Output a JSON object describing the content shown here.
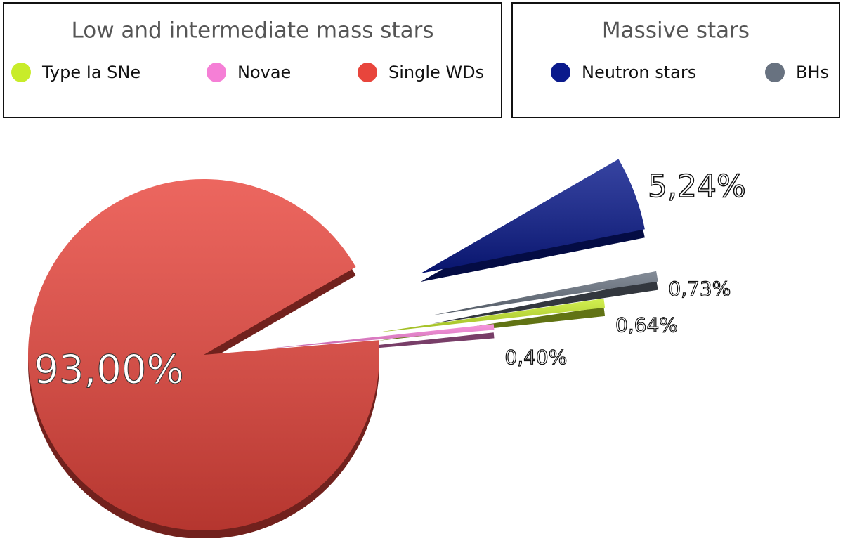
{
  "chart_data": {
    "type": "pie",
    "groups": [
      {
        "name": "Low and intermediate mass stars",
        "categories": [
          "Type Ia SNe",
          "Novae",
          "Single WDs"
        ],
        "colors": [
          "#c8ec2a",
          "#f57fd6",
          "#e8453c"
        ],
        "values": [
          0.64,
          0.4,
          93.0
        ],
        "value_labels": [
          "0,64%",
          "0,40%",
          "93,00%"
        ]
      },
      {
        "name": "Massive stars",
        "categories": [
          "Neutron stars",
          "BHs"
        ],
        "colors": [
          "#0a1a8c",
          "#687280"
        ],
        "values": [
          5.24,
          0.73
        ],
        "value_labels": [
          "5,24%",
          "0,73%"
        ]
      }
    ]
  }
}
